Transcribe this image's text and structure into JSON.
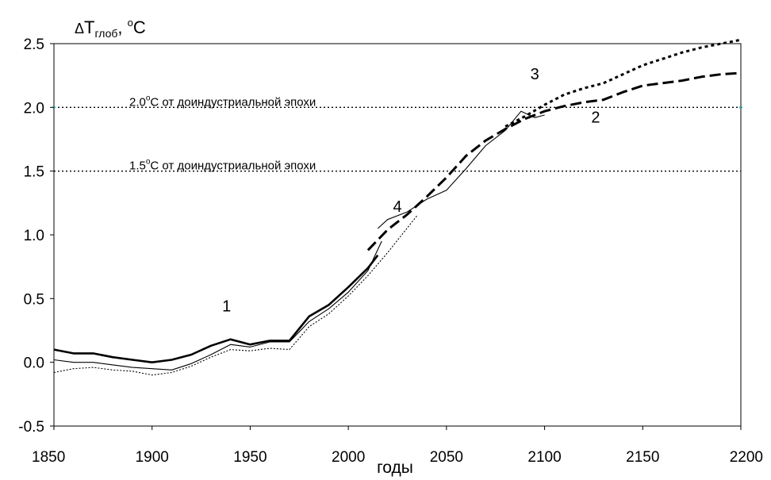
{
  "chart_data": {
    "type": "line",
    "ylabel": {
      "delta": "Δ",
      "main": "T",
      "sub": "глоб",
      "unit_pre": ", ",
      "unit_sup": "o",
      "unit_post": "C"
    },
    "xlabel": "годы",
    "xlim": [
      1850,
      2200
    ],
    "ylim": [
      -0.5,
      2.5
    ],
    "x_ticks": [
      "1850",
      "1900",
      "1950",
      "2000",
      "2050",
      "2100",
      "2150",
      "2200"
    ],
    "y_ticks": [
      "2.5",
      "2.0",
      "1.5",
      "1.0",
      "0.5",
      "0.0",
      "-0.5"
    ],
    "grid": false,
    "reference_lines": [
      {
        "y": 2.0,
        "pre": "2.0",
        "sup": "o",
        "post": "C от доиндустриальной эпохи"
      },
      {
        "y": 1.5,
        "pre": "1.5",
        "sup": "o",
        "post": "C от доиндустриальной эпохи"
      }
    ],
    "curve_labels": [
      {
        "text": "1",
        "x": 1938,
        "y": 0.4
      },
      {
        "text": "2",
        "x": 2126,
        "y": 1.88
      },
      {
        "text": "3",
        "x": 2095,
        "y": 2.22
      },
      {
        "text": "4",
        "x": 2025,
        "y": 1.18
      }
    ],
    "series": [
      {
        "style": "thick-solid",
        "x": [
          1850,
          1860,
          1870,
          1880,
          1890,
          1900,
          1910,
          1920,
          1930,
          1940,
          1950,
          1960,
          1970,
          1980,
          1990,
          2000,
          2010,
          2015
        ],
        "y": [
          0.1,
          0.07,
          0.07,
          0.04,
          0.02,
          0.0,
          0.02,
          0.06,
          0.13,
          0.18,
          0.14,
          0.17,
          0.17,
          0.36,
          0.45,
          0.59,
          0.74,
          0.84
        ]
      },
      {
        "style": "thin-solid",
        "x": [
          1850,
          1860,
          1870,
          1880,
          1890,
          1900,
          1910,
          1920,
          1930,
          1940,
          1950,
          1960,
          1970,
          1980,
          1990,
          2000,
          2010,
          2017
        ],
        "y": [
          0.02,
          0.0,
          0.0,
          -0.02,
          -0.04,
          -0.05,
          -0.06,
          -0.01,
          0.06,
          0.14,
          0.12,
          0.16,
          0.16,
          0.32,
          0.42,
          0.55,
          0.72,
          0.95
        ]
      },
      {
        "style": "dotted-thin",
        "x": [
          1850,
          1860,
          1870,
          1880,
          1890,
          1900,
          1910,
          1920,
          1930,
          1940,
          1950,
          1960,
          1970,
          1980,
          1990,
          2000,
          2010,
          2020,
          2035
        ],
        "y": [
          -0.08,
          -0.05,
          -0.04,
          -0.06,
          -0.07,
          -0.1,
          -0.08,
          -0.03,
          0.04,
          0.1,
          0.09,
          0.11,
          0.1,
          0.28,
          0.38,
          0.52,
          0.68,
          0.86,
          1.15
        ]
      },
      {
        "style": "thin-solid",
        "x": [
          2015,
          2020,
          2030,
          2040,
          2050,
          2060,
          2070,
          2080,
          2088,
          2095,
          2100
        ],
        "y": [
          1.05,
          1.12,
          1.18,
          1.28,
          1.35,
          1.52,
          1.7,
          1.82,
          1.97,
          1.92,
          1.94
        ]
      },
      {
        "style": "long-dash",
        "x": [
          2010,
          2020,
          2030,
          2040,
          2050,
          2060,
          2070,
          2080,
          2090,
          2100,
          2110,
          2120,
          2130,
          2140,
          2150,
          2160,
          2170,
          2180,
          2190,
          2200
        ],
        "y": [
          0.88,
          1.04,
          1.16,
          1.3,
          1.45,
          1.62,
          1.74,
          1.83,
          1.91,
          1.97,
          2.01,
          2.04,
          2.06,
          2.12,
          2.17,
          2.19,
          2.21,
          2.24,
          2.26,
          2.27
        ]
      },
      {
        "style": "short-dash",
        "x": [
          2080,
          2090,
          2100,
          2110,
          2120,
          2130,
          2140,
          2150,
          2160,
          2170,
          2180,
          2190,
          2200
        ],
        "y": [
          1.85,
          1.93,
          2.02,
          2.1,
          2.15,
          2.19,
          2.26,
          2.33,
          2.38,
          2.43,
          2.47,
          2.5,
          2.53
        ]
      }
    ]
  }
}
